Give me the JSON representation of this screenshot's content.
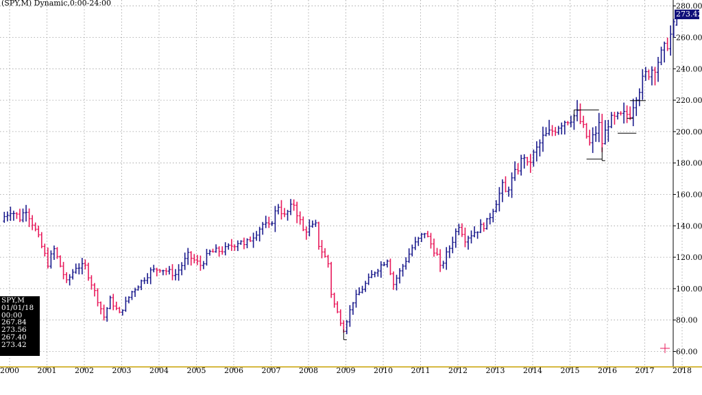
{
  "window": {
    "title": "(SPY,M) Dynamic,0:00-24:00"
  },
  "colors": {
    "up": "#1a1a8c",
    "down": "#e8185a",
    "grid": "#9a9a9a",
    "baseline": "#c8a000",
    "last_box": "#10107a",
    "info_box": "#000000"
  },
  "info_box": {
    "symbol": "SPY,M",
    "date": "01/01/18",
    "time": "00:00",
    "open": "267.84",
    "high": "273.56",
    "low": "267.40",
    "close": "273.42"
  },
  "last_price": "273.42",
  "chart_data": {
    "type": "ohlc",
    "title": "(SPY,M) Dynamic,0:00-24:00",
    "y_axis_side": "right",
    "ylim": [
      58,
      284
    ],
    "yticks": [
      "60.00",
      "80.00",
      "100.00",
      "120.00",
      "140.00",
      "160.00",
      "180.00",
      "200.00",
      "220.00",
      "240.00",
      "260.00",
      "280.00"
    ],
    "xticks": [
      "2000",
      "2001",
      "2002",
      "2003",
      "2004",
      "2005",
      "2006",
      "2007",
      "2008",
      "2009",
      "2010",
      "2011",
      "2012",
      "2013",
      "2014",
      "2015",
      "2016",
      "2017",
      "2018"
    ],
    "grid": true,
    "anchors": [
      [
        "2000-01",
        146
      ],
      [
        "2000-03",
        150
      ],
      [
        "2000-06",
        145
      ],
      [
        "2000-08",
        151
      ],
      [
        "2000-10",
        142
      ],
      [
        "2000-12",
        132
      ],
      [
        "2001-03",
        116
      ],
      [
        "2001-05",
        125
      ],
      [
        "2001-09",
        104
      ],
      [
        "2001-12",
        114
      ],
      [
        "2002-03",
        114
      ],
      [
        "2002-06",
        98
      ],
      [
        "2002-09",
        82
      ],
      [
        "2002-11",
        93
      ],
      [
        "2003-02",
        84
      ],
      [
        "2003-06",
        98
      ],
      [
        "2003-12",
        111
      ],
      [
        "2004-03",
        113
      ],
      [
        "2004-08",
        109
      ],
      [
        "2004-12",
        121
      ],
      [
        "2005-04",
        115
      ],
      [
        "2005-07",
        123
      ],
      [
        "2005-12",
        125
      ],
      [
        "2006-05",
        131
      ],
      [
        "2006-06",
        127
      ],
      [
        "2006-12",
        141
      ],
      [
        "2007-02",
        139
      ],
      [
        "2007-05",
        153
      ],
      [
        "2007-07",
        146
      ],
      [
        "2007-10",
        154
      ],
      [
        "2008-01",
        137
      ],
      [
        "2008-05",
        140
      ],
      [
        "2008-06",
        128
      ],
      [
        "2008-09",
        116
      ],
      [
        "2008-10",
        97
      ],
      [
        "2008-11",
        90
      ],
      [
        "2009-02",
        74
      ],
      [
        "2009-05",
        92
      ],
      [
        "2009-12",
        111
      ],
      [
        "2010-04",
        119
      ],
      [
        "2010-06",
        103
      ],
      [
        "2010-12",
        126
      ],
      [
        "2011-04",
        136
      ],
      [
        "2011-08",
        121
      ],
      [
        "2011-09",
        113
      ],
      [
        "2011-12",
        126
      ],
      [
        "2012-03",
        141
      ],
      [
        "2012-05",
        132
      ],
      [
        "2012-12",
        142
      ],
      [
        "2013-05",
        165
      ],
      [
        "2013-06",
        161
      ],
      [
        "2013-12",
        185
      ],
      [
        "2014-01",
        178
      ],
      [
        "2014-06",
        196
      ],
      [
        "2014-10",
        202
      ],
      [
        "2014-12",
        206
      ],
      [
        "2015-05",
        211
      ],
      [
        "2015-08",
        197
      ],
      [
        "2015-09",
        192
      ],
      [
        "2015-12",
        204
      ],
      [
        "2016-01",
        193
      ],
      [
        "2016-03",
        206
      ],
      [
        "2016-10",
        212
      ],
      [
        "2016-12",
        224
      ],
      [
        "2017-03",
        236
      ],
      [
        "2017-06",
        242
      ],
      [
        "2017-09",
        252
      ],
      [
        "2017-12",
        266
      ],
      [
        "2018-01",
        273.42
      ]
    ],
    "series": [
      {
        "name": "SPY,M",
        "last_bar": {
          "date": "2018-01",
          "open": 267.84,
          "high": 273.56,
          "low": 267.4,
          "close": 273.42
        }
      }
    ]
  }
}
